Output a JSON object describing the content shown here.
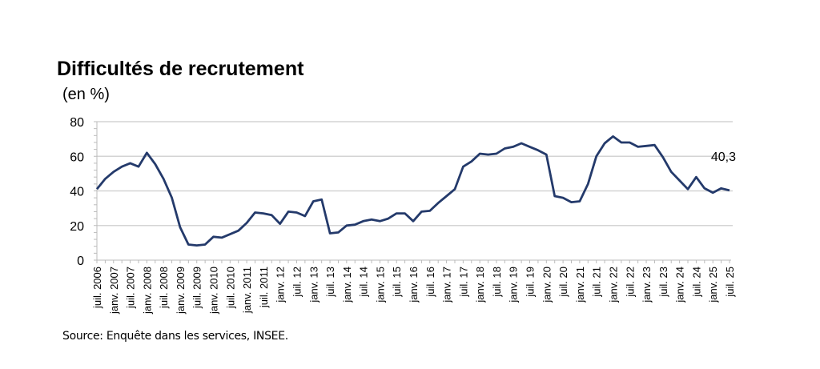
{
  "chart_data": {
    "type": "line",
    "title": "Difficultés de recrutement",
    "subtitle": "(en %)",
    "source": "Source: Enquête dans les services, INSEE.",
    "ylim": [
      0,
      80
    ],
    "yticks": [
      0,
      20,
      40,
      60,
      80
    ],
    "grid": true,
    "line_color": "#243a6b",
    "x_tick_labels": [
      "juil. 2006",
      "janv. 2007",
      "juil. 2007",
      "janv. 2008",
      "juil. 2008",
      "janv. 2009",
      "juil. 2009",
      "janv. 2010",
      "juil. 2010",
      "janv. 2011",
      "juil. 2011",
      "janv. 12",
      "juil. 12",
      "janv. 13",
      "juil. 13",
      "janv. 14",
      "juil. 14",
      "janv. 15",
      "juil. 15",
      "janv. 16",
      "juil. 16",
      "janv. 17",
      "juil. 17",
      "janv. 18",
      "juil. 18",
      "janv. 19",
      "juil. 19",
      "janv. 20",
      "juil. 20",
      "janv. 21",
      "juil. 21",
      "janv. 22",
      "juil. 22",
      "janv. 23",
      "juil. 23",
      "janv. 24",
      "juil. 24",
      "janv. 25",
      "juil. 25"
    ],
    "frequency": "quarterly",
    "x_start": "juil. 2006",
    "x_end": "juil. 2025",
    "values": [
      41,
      47,
      51,
      54,
      56,
      54,
      62,
      55.5,
      47,
      36,
      19,
      9,
      8.5,
      9,
      13.5,
      13,
      15,
      17,
      21.5,
      27.5,
      27,
      26,
      21,
      28,
      27.5,
      25.5,
      34,
      35,
      15.5,
      16,
      20,
      20.5,
      22.5,
      23.5,
      22.5,
      24,
      27,
      27,
      22.5,
      28,
      28.5,
      33,
      37,
      41,
      54,
      57,
      61.5,
      61,
      61.5,
      64.5,
      65.5,
      67.5,
      65.5,
      63.5,
      61,
      37,
      36,
      33.5,
      34,
      44,
      60,
      67.5,
      71.5,
      68,
      68,
      65.5,
      66,
      66.5,
      59.5,
      51,
      46,
      41,
      48,
      41.5,
      39,
      41.5,
      40.3
    ],
    "last_value_label": "40,3"
  }
}
